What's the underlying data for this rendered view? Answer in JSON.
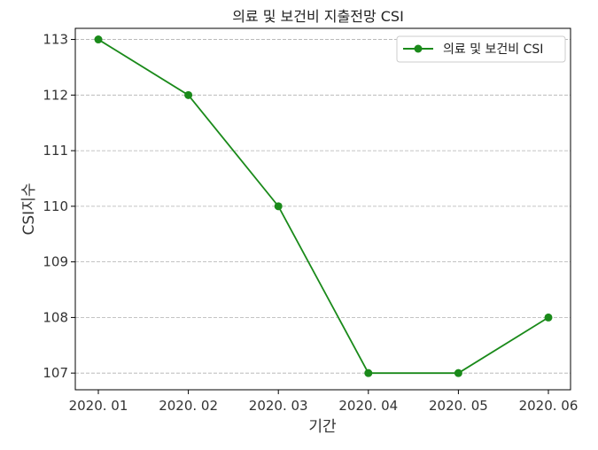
{
  "chart_data": {
    "type": "line",
    "title": "의료 및 보건비 지출전망 CSI",
    "xlabel": "기간",
    "ylabel": "CSI지수",
    "categories": [
      "2020. 01",
      "2020. 02",
      "2020. 03",
      "2020. 04",
      "2020. 05",
      "2020. 06"
    ],
    "series": [
      {
        "name": "의료 및 보건비 CSI",
        "values": [
          113,
          112,
          110,
          107,
          107,
          108
        ],
        "color": "#1a8a1a",
        "marker": "circle"
      }
    ],
    "ylim": [
      106.7,
      113.2
    ],
    "yticks": [
      107,
      108,
      109,
      110,
      111,
      112,
      113
    ],
    "grid": "horizontal-dashed",
    "legend_position": "top-right"
  }
}
